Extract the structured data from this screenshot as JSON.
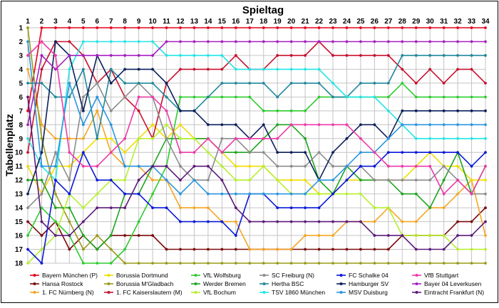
{
  "chart_data": {
    "type": "line",
    "title": "Spieltag",
    "ylabel": "Tabellenplatz",
    "x": [
      1,
      2,
      3,
      4,
      5,
      6,
      7,
      8,
      9,
      10,
      11,
      12,
      13,
      14,
      15,
      16,
      17,
      18,
      19,
      20,
      21,
      22,
      23,
      24,
      25,
      26,
      27,
      28,
      29,
      30,
      31,
      32,
      33,
      34
    ],
    "y_ticks": [
      1,
      2,
      3,
      4,
      5,
      6,
      7,
      8,
      9,
      10,
      11,
      12,
      13,
      14,
      15,
      16,
      17,
      18
    ],
    "ylim": [
      1,
      18
    ],
    "y_inverted": true,
    "grid": true,
    "legend_position": "bottom",
    "series": [
      {
        "name": "Bayern München (P)",
        "color": "#e8001c",
        "values": [
          7,
          1,
          1,
          1,
          1,
          1,
          1,
          1,
          1,
          1,
          1,
          1,
          1,
          1,
          1,
          1,
          1,
          1,
          1,
          1,
          1,
          1,
          1,
          1,
          1,
          1,
          1,
          1,
          1,
          1,
          1,
          1,
          1,
          1
        ]
      },
      {
        "name": "Hansa Rostock",
        "color": "#7a0a0a",
        "values": [
          15,
          16,
          15,
          17,
          16,
          17,
          16,
          16,
          16,
          16,
          17,
          17,
          17,
          17,
          17,
          17,
          17,
          17,
          17,
          17,
          17,
          17,
          17,
          17,
          17,
          17,
          17,
          16,
          16,
          16,
          16,
          15,
          15,
          14
        ]
      },
      {
        "name": "1. FC Nürnberg (N)",
        "color": "#f5a623",
        "values": [
          4,
          8,
          9,
          9,
          9,
          7,
          10,
          11,
          11,
          12,
          12,
          14,
          14,
          14,
          15,
          15,
          17,
          17,
          17,
          17,
          16,
          16,
          16,
          15,
          15,
          15,
          14,
          15,
          15,
          14,
          14,
          13,
          12,
          16
        ]
      },
      {
        "name": "Borussia Dortmund",
        "color": "#f1dc00",
        "values": [
          11,
          13,
          11,
          11,
          10,
          9,
          9,
          10,
          9,
          8,
          9,
          8,
          9,
          9,
          10,
          11,
          11,
          11,
          12,
          12,
          12,
          13,
          13,
          12,
          12,
          12,
          12,
          12,
          11,
          10,
          11,
          11,
          12,
          12
        ]
      },
      {
        "name": "Borussia M'Gladbach",
        "color": "#9a9a18",
        "values": [
          1,
          9,
          13,
          15,
          17,
          16,
          17,
          18,
          18,
          18,
          18,
          18,
          18,
          18,
          18,
          18,
          18,
          18,
          18,
          18,
          18,
          18,
          18,
          18,
          18,
          18,
          18,
          18,
          18,
          18,
          18,
          18,
          18,
          18
        ]
      },
      {
        "name": "1. FC Kaiserslautern (M)",
        "color": "#c8102e",
        "values": [
          10,
          4,
          2,
          2,
          3,
          5,
          4,
          6,
          7,
          9,
          5,
          4,
          4,
          4,
          4,
          3,
          4,
          4,
          3,
          3,
          3,
          2,
          3,
          3,
          3,
          3,
          3,
          4,
          5,
          4,
          5,
          4,
          4,
          5
        ]
      },
      {
        "name": "VfL Wolfsburg",
        "color": "#2ecc2e",
        "values": [
          16,
          14,
          15,
          16,
          18,
          18,
          18,
          17,
          15,
          13,
          11,
          6,
          6,
          6,
          6,
          6,
          6,
          7,
          7,
          7,
          7,
          6,
          6,
          6,
          6,
          6,
          6,
          5,
          6,
          6,
          6,
          6,
          6,
          6
        ]
      },
      {
        "name": "Werder Bremen",
        "color": "#1fa31f",
        "values": [
          12,
          12,
          14,
          14,
          16,
          17,
          16,
          13,
          13,
          11,
          9,
          9,
          9,
          9,
          10,
          10,
          10,
          9,
          8,
          8,
          9,
          12,
          13,
          11,
          12,
          12,
          12,
          13,
          13,
          14,
          12,
          10,
          13,
          11
        ]
      },
      {
        "name": "VfL Bochum",
        "color": "#b6f02d",
        "values": [
          18,
          17,
          16,
          13,
          14,
          13,
          12,
          12,
          9,
          9,
          8,
          9,
          9,
          10,
          11,
          12,
          12,
          11,
          12,
          13,
          13,
          13,
          13,
          13,
          13,
          14,
          14,
          16,
          16,
          16,
          16,
          17,
          17,
          17
        ]
      },
      {
        "name": "SC Freiburg (N)",
        "color": "#8c8c8c",
        "values": [
          14,
          13,
          10,
          12,
          6,
          5,
          7,
          6,
          5,
          6,
          9,
          11,
          12,
          12,
          9,
          9,
          10,
          10,
          11,
          11,
          11,
          10,
          11,
          11,
          11,
          12,
          12,
          12,
          12,
          12,
          11,
          12,
          13,
          13
        ]
      },
      {
        "name": "Hertha BSC",
        "color": "#21889a",
        "values": [
          5,
          5,
          6,
          6,
          4,
          9,
          4,
          5,
          5,
          5,
          6,
          7,
          7,
          6,
          5,
          5,
          5,
          5,
          6,
          5,
          5,
          5,
          6,
          6,
          5,
          5,
          5,
          3,
          3,
          3,
          3,
          3,
          3,
          3
        ]
      },
      {
        "name": "TSV 1860 München",
        "color": "#22e5e5",
        "values": [
          9,
          11,
          12,
          4,
          2,
          2,
          2,
          2,
          2,
          2,
          3,
          3,
          3,
          3,
          3,
          4,
          4,
          4,
          4,
          4,
          4,
          4,
          5,
          6,
          6,
          6,
          7,
          8,
          9,
          9,
          9,
          9,
          9,
          9
        ]
      },
      {
        "name": "FC Schalke 04",
        "color": "#0a18d8",
        "values": [
          17,
          18,
          12,
          13,
          10,
          12,
          12,
          13,
          13,
          14,
          14,
          15,
          15,
          15,
          15,
          16,
          13,
          13,
          14,
          14,
          14,
          14,
          13,
          12,
          11,
          11,
          10,
          10,
          10,
          10,
          10,
          10,
          11,
          10
        ]
      },
      {
        "name": "Hamburger SV",
        "color": "#0b1f5a",
        "values": [
          13,
          10,
          2,
          3,
          7,
          3,
          5,
          4,
          4,
          4,
          5,
          7,
          7,
          8,
          8,
          8,
          9,
          8,
          10,
          10,
          10,
          12,
          10,
          9,
          8,
          8,
          9,
          7,
          7,
          7,
          7,
          7,
          7,
          7
        ]
      },
      {
        "name": "MSV Duisburg",
        "color": "#2a95dd",
        "values": [
          2,
          11,
          11,
          5,
          8,
          6,
          8,
          11,
          11,
          11,
          12,
          13,
          12,
          13,
          13,
          13,
          13,
          13,
          13,
          13,
          13,
          12,
          12,
          11,
          10,
          10,
          9,
          8,
          8,
          8,
          8,
          8,
          8,
          8
        ]
      },
      {
        "name": "VfB Stuttgart",
        "color": "#ec3aa8",
        "values": [
          3,
          2,
          3,
          10,
          11,
          11,
          10,
          9,
          6,
          6,
          7,
          10,
          10,
          9,
          10,
          9,
          9,
          9,
          9,
          8,
          8,
          8,
          8,
          8,
          9,
          10,
          11,
          11,
          11,
          11,
          13,
          12,
          13,
          11
        ]
      },
      {
        "name": "Bayer 04 Leverkusen",
        "color": "#a51fc0",
        "values": [
          8,
          3,
          4,
          3,
          3,
          3,
          3,
          3,
          3,
          3,
          2,
          2,
          2,
          2,
          2,
          2,
          2,
          2,
          2,
          2,
          2,
          2,
          2,
          2,
          2,
          2,
          2,
          2,
          2,
          2,
          2,
          2,
          2,
          2
        ]
      },
      {
        "name": "Eintracht Frankfurt (N)",
        "color": "#5b1a7a",
        "values": [
          6,
          15,
          16,
          16,
          15,
          14,
          14,
          14,
          12,
          11,
          11,
          12,
          11,
          11,
          12,
          14,
          15,
          15,
          15,
          15,
          15,
          15,
          15,
          15,
          15,
          16,
          16,
          16,
          17,
          17,
          17,
          16,
          16,
          15
        ]
      }
    ]
  }
}
